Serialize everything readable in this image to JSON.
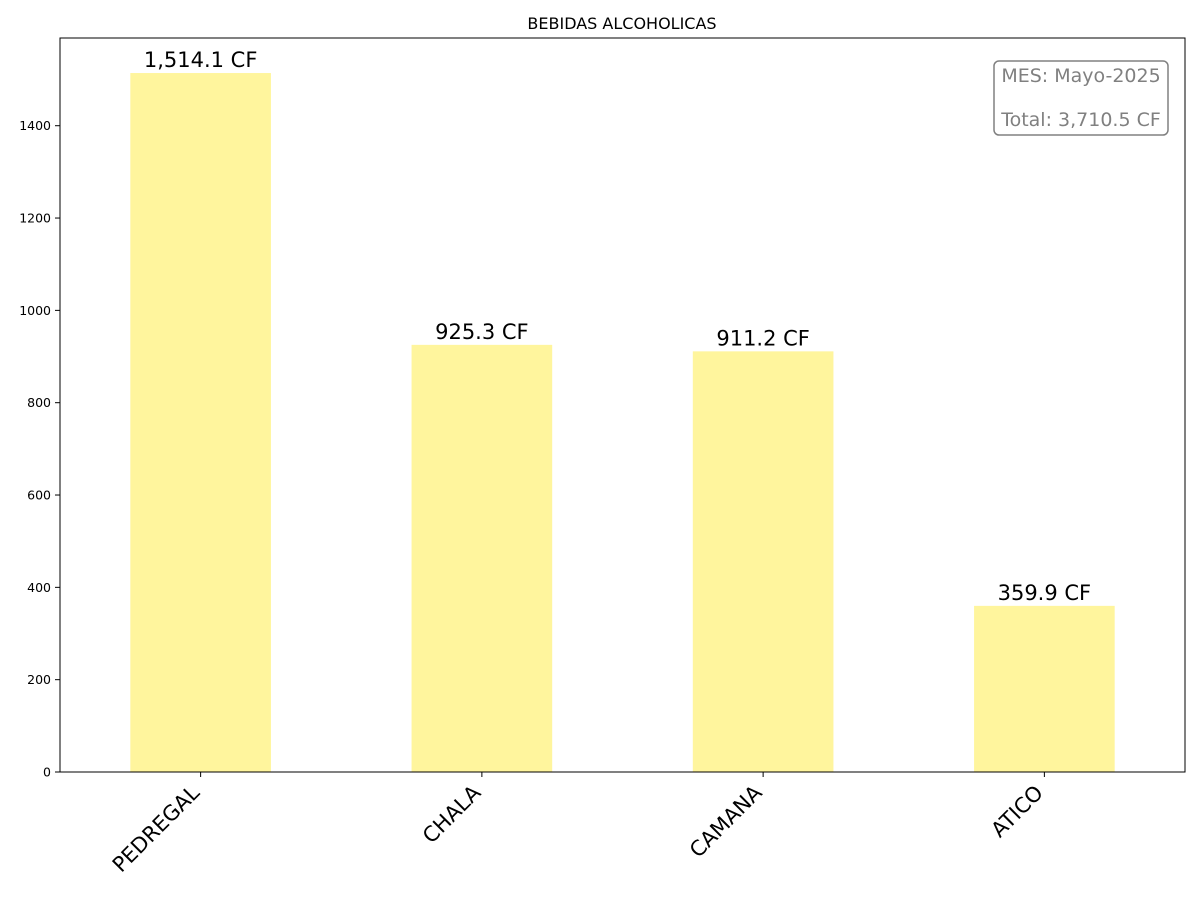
{
  "chart_data": {
    "type": "bar",
    "title": "BEBIDAS ALCOHOLICAS",
    "xlabel": "",
    "ylabel": "",
    "categories": [
      "PEDREGAL",
      "CHALA",
      "CAMANA",
      "ATICO"
    ],
    "values": [
      1514.1,
      925.3,
      911.2,
      359.9
    ],
    "data_labels": [
      "1,514.1 CF",
      "925.3 CF",
      "911.2 CF",
      "359.9 CF"
    ],
    "ylim": [
      0,
      1590
    ],
    "yticks": [
      0,
      200,
      400,
      600,
      800,
      1000,
      1200,
      1400
    ],
    "ytick_labels": [
      "0",
      "200",
      "400",
      "600",
      "800",
      "1000",
      "1200",
      "1400"
    ],
    "bar_color": "#fff59d",
    "grid": false,
    "annotation_box": {
      "placement": "top-right",
      "lines": [
        "MES: Mayo-2025",
        "Total: 3,710.5 CF"
      ],
      "text_color": "#808080"
    }
  }
}
